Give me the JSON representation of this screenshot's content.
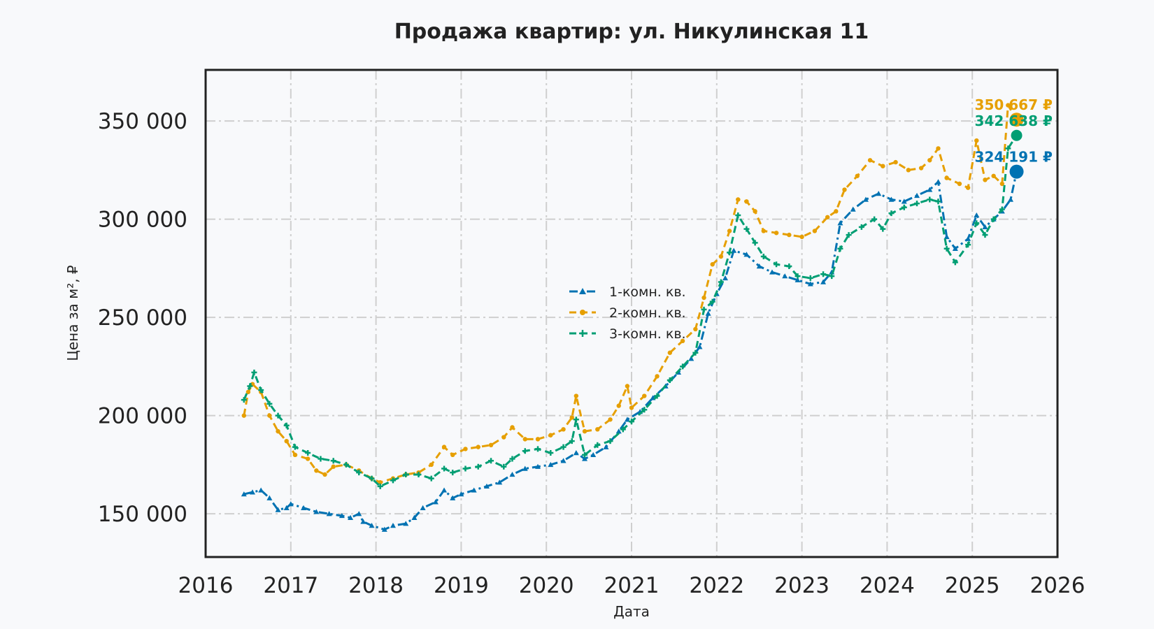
{
  "chart_data": {
    "type": "line",
    "title": "Продажа квартир: ул. Никулинская 11",
    "xlabel": "Дата",
    "ylabel": "Цена за м², ₽",
    "xlim": [
      2016.0,
      2026.0
    ],
    "ylim": [
      128000,
      376000
    ],
    "x_ticks": [
      "2016",
      "2017",
      "2018",
      "2019",
      "2020",
      "2021",
      "2022",
      "2023",
      "2024",
      "2025",
      "2026"
    ],
    "y_ticks": [
      "150 000",
      "200 000",
      "250 000",
      "300 000",
      "350 000"
    ],
    "y_tick_values": [
      150000,
      200000,
      250000,
      300000,
      350000
    ],
    "grid": true,
    "legend_position": "center",
    "series": [
      {
        "name": "1-комн. кв.",
        "color": "#0072b2",
        "marker": "triangle",
        "linestyle": "dash-dot",
        "points": [
          [
            2016.45,
            160000
          ],
          [
            2016.55,
            161000
          ],
          [
            2016.65,
            162000
          ],
          [
            2016.75,
            158000
          ],
          [
            2016.85,
            152000
          ],
          [
            2016.95,
            153000
          ],
          [
            2017.0,
            155000
          ],
          [
            2017.15,
            153000
          ],
          [
            2017.3,
            151000
          ],
          [
            2017.45,
            150000
          ],
          [
            2017.6,
            149000
          ],
          [
            2017.7,
            148000
          ],
          [
            2017.8,
            150000
          ],
          [
            2017.85,
            146000
          ],
          [
            2017.95,
            144000
          ],
          [
            2018.1,
            142000
          ],
          [
            2018.2,
            144000
          ],
          [
            2018.35,
            145000
          ],
          [
            2018.45,
            148000
          ],
          [
            2018.55,
            153000
          ],
          [
            2018.7,
            156000
          ],
          [
            2018.8,
            162000
          ],
          [
            2018.9,
            158000
          ],
          [
            2019.0,
            160000
          ],
          [
            2019.15,
            162000
          ],
          [
            2019.3,
            164000
          ],
          [
            2019.45,
            166000
          ],
          [
            2019.6,
            170000
          ],
          [
            2019.75,
            173000
          ],
          [
            2019.9,
            174000
          ],
          [
            2020.05,
            175000
          ],
          [
            2020.2,
            177000
          ],
          [
            2020.35,
            181000
          ],
          [
            2020.45,
            178000
          ],
          [
            2020.55,
            180000
          ],
          [
            2020.7,
            184000
          ],
          [
            2020.85,
            192000
          ],
          [
            2020.95,
            198000
          ],
          [
            2021.1,
            202000
          ],
          [
            2021.25,
            209000
          ],
          [
            2021.4,
            215000
          ],
          [
            2021.55,
            222000
          ],
          [
            2021.7,
            229000
          ],
          [
            2021.8,
            235000
          ],
          [
            2021.9,
            252000
          ],
          [
            2022.0,
            262000
          ],
          [
            2022.1,
            270000
          ],
          [
            2022.2,
            284000
          ],
          [
            2022.35,
            282000
          ],
          [
            2022.5,
            276000
          ],
          [
            2022.65,
            273000
          ],
          [
            2022.8,
            271000
          ],
          [
            2022.95,
            269000
          ],
          [
            2023.1,
            267000
          ],
          [
            2023.25,
            268000
          ],
          [
            2023.35,
            273000
          ],
          [
            2023.45,
            298000
          ],
          [
            2023.6,
            305000
          ],
          [
            2023.75,
            310000
          ],
          [
            2023.9,
            313000
          ],
          [
            2024.05,
            310000
          ],
          [
            2024.2,
            309000
          ],
          [
            2024.35,
            312000
          ],
          [
            2024.5,
            315000
          ],
          [
            2024.6,
            319000
          ],
          [
            2024.7,
            291000
          ],
          [
            2024.8,
            285000
          ],
          [
            2024.95,
            290000
          ],
          [
            2025.05,
            302000
          ],
          [
            2025.15,
            296000
          ],
          [
            2025.25,
            300000
          ],
          [
            2025.35,
            304000
          ],
          [
            2025.45,
            310000
          ],
          [
            2025.52,
            324191
          ]
        ],
        "end_label": "324 191 ₽"
      },
      {
        "name": "2-комн. кв.",
        "color": "#e69f00",
        "marker": "circle",
        "linestyle": "dash",
        "points": [
          [
            2016.45,
            200000
          ],
          [
            2016.5,
            212000
          ],
          [
            2016.55,
            216000
          ],
          [
            2016.65,
            212000
          ],
          [
            2016.75,
            200000
          ],
          [
            2016.85,
            192000
          ],
          [
            2016.95,
            187000
          ],
          [
            2017.05,
            180000
          ],
          [
            2017.2,
            178000
          ],
          [
            2017.3,
            172000
          ],
          [
            2017.4,
            170000
          ],
          [
            2017.5,
            174000
          ],
          [
            2017.65,
            175000
          ],
          [
            2017.8,
            172000
          ],
          [
            2017.95,
            168000
          ],
          [
            2018.05,
            166000
          ],
          [
            2018.2,
            168000
          ],
          [
            2018.35,
            170000
          ],
          [
            2018.5,
            171000
          ],
          [
            2018.65,
            175000
          ],
          [
            2018.8,
            184000
          ],
          [
            2018.9,
            180000
          ],
          [
            2019.05,
            183000
          ],
          [
            2019.2,
            184000
          ],
          [
            2019.35,
            185000
          ],
          [
            2019.5,
            189000
          ],
          [
            2019.6,
            194000
          ],
          [
            2019.75,
            188000
          ],
          [
            2019.9,
            188000
          ],
          [
            2020.05,
            190000
          ],
          [
            2020.2,
            193000
          ],
          [
            2020.3,
            199000
          ],
          [
            2020.35,
            210000
          ],
          [
            2020.45,
            192000
          ],
          [
            2020.6,
            193000
          ],
          [
            2020.75,
            198000
          ],
          [
            2020.85,
            205000
          ],
          [
            2020.95,
            215000
          ],
          [
            2021.0,
            204000
          ],
          [
            2021.15,
            210000
          ],
          [
            2021.3,
            220000
          ],
          [
            2021.45,
            232000
          ],
          [
            2021.6,
            238000
          ],
          [
            2021.75,
            244000
          ],
          [
            2021.85,
            260000
          ],
          [
            2021.95,
            277000
          ],
          [
            2022.05,
            281000
          ],
          [
            2022.15,
            294000
          ],
          [
            2022.25,
            310000
          ],
          [
            2022.35,
            309000
          ],
          [
            2022.45,
            304000
          ],
          [
            2022.55,
            294000
          ],
          [
            2022.7,
            293000
          ],
          [
            2022.85,
            292000
          ],
          [
            2023.0,
            291000
          ],
          [
            2023.15,
            294000
          ],
          [
            2023.3,
            301000
          ],
          [
            2023.4,
            304000
          ],
          [
            2023.5,
            315000
          ],
          [
            2023.65,
            322000
          ],
          [
            2023.8,
            330000
          ],
          [
            2023.95,
            327000
          ],
          [
            2024.1,
            329000
          ],
          [
            2024.25,
            325000
          ],
          [
            2024.4,
            326000
          ],
          [
            2024.5,
            330000
          ],
          [
            2024.6,
            336000
          ],
          [
            2024.7,
            321000
          ],
          [
            2024.85,
            318000
          ],
          [
            2024.95,
            316000
          ],
          [
            2025.05,
            340000
          ],
          [
            2025.15,
            320000
          ],
          [
            2025.25,
            322000
          ],
          [
            2025.35,
            318000
          ],
          [
            2025.42,
            358000
          ],
          [
            2025.52,
            350667
          ]
        ],
        "end_label": "350 667 ₽"
      },
      {
        "name": "3-комн. кв.",
        "color": "#009e73",
        "marker": "plus",
        "linestyle": "dash",
        "points": [
          [
            2016.45,
            208000
          ],
          [
            2016.52,
            215000
          ],
          [
            2016.57,
            222000
          ],
          [
            2016.65,
            213000
          ],
          [
            2016.75,
            206000
          ],
          [
            2016.85,
            200000
          ],
          [
            2016.95,
            195000
          ],
          [
            2017.05,
            184000
          ],
          [
            2017.2,
            181000
          ],
          [
            2017.35,
            178000
          ],
          [
            2017.5,
            177000
          ],
          [
            2017.65,
            175000
          ],
          [
            2017.8,
            171000
          ],
          [
            2017.95,
            168000
          ],
          [
            2018.05,
            164000
          ],
          [
            2018.2,
            167000
          ],
          [
            2018.35,
            170000
          ],
          [
            2018.5,
            170000
          ],
          [
            2018.65,
            168000
          ],
          [
            2018.8,
            173000
          ],
          [
            2018.9,
            171000
          ],
          [
            2019.05,
            173000
          ],
          [
            2019.2,
            174000
          ],
          [
            2019.35,
            177000
          ],
          [
            2019.5,
            174000
          ],
          [
            2019.6,
            178000
          ],
          [
            2019.75,
            182000
          ],
          [
            2019.9,
            183000
          ],
          [
            2020.05,
            181000
          ],
          [
            2020.2,
            184000
          ],
          [
            2020.3,
            187000
          ],
          [
            2020.35,
            198000
          ],
          [
            2020.45,
            180000
          ],
          [
            2020.6,
            185000
          ],
          [
            2020.75,
            187000
          ],
          [
            2020.9,
            193000
          ],
          [
            2021.0,
            197000
          ],
          [
            2021.15,
            203000
          ],
          [
            2021.3,
            210000
          ],
          [
            2021.45,
            218000
          ],
          [
            2021.6,
            225000
          ],
          [
            2021.75,
            232000
          ],
          [
            2021.85,
            254000
          ],
          [
            2021.95,
            258000
          ],
          [
            2022.05,
            268000
          ],
          [
            2022.15,
            283000
          ],
          [
            2022.25,
            302000
          ],
          [
            2022.35,
            295000
          ],
          [
            2022.45,
            288000
          ],
          [
            2022.55,
            281000
          ],
          [
            2022.7,
            277000
          ],
          [
            2022.85,
            276000
          ],
          [
            2022.95,
            271000
          ],
          [
            2023.1,
            270000
          ],
          [
            2023.25,
            272000
          ],
          [
            2023.35,
            271000
          ],
          [
            2023.45,
            285000
          ],
          [
            2023.55,
            292000
          ],
          [
            2023.7,
            296000
          ],
          [
            2023.85,
            300000
          ],
          [
            2023.95,
            295000
          ],
          [
            2024.05,
            303000
          ],
          [
            2024.2,
            306000
          ],
          [
            2024.35,
            308000
          ],
          [
            2024.5,
            310000
          ],
          [
            2024.6,
            309000
          ],
          [
            2024.7,
            285000
          ],
          [
            2024.8,
            278000
          ],
          [
            2024.95,
            287000
          ],
          [
            2025.05,
            298000
          ],
          [
            2025.15,
            292000
          ],
          [
            2025.25,
            300000
          ],
          [
            2025.35,
            305000
          ],
          [
            2025.42,
            336000
          ],
          [
            2025.52,
            342638
          ]
        ],
        "end_label": "342 638 ₽"
      }
    ]
  }
}
